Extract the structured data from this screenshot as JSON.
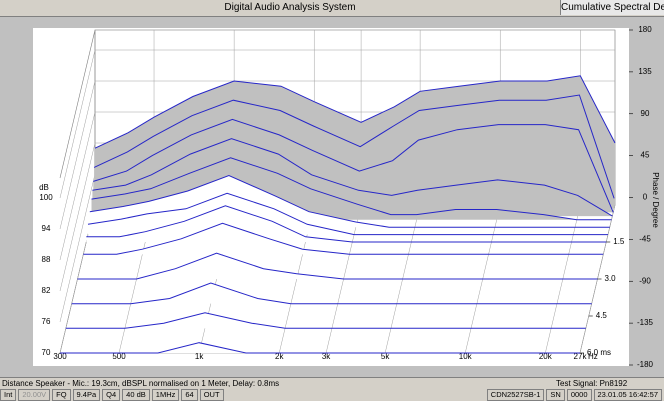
{
  "window": {
    "title": "Digital Audio Analysis System",
    "tab": "Cumulative Spectral Decay"
  },
  "plot": {
    "ylabel": "dB",
    "y2label": "Phase / Degree",
    "xunit": "Hz",
    "xlim": [
      300,
      27000
    ],
    "ylim": [
      70,
      100
    ],
    "tlim": [
      0,
      6
    ],
    "y2lim": [
      -180,
      180
    ],
    "xticks": [
      300,
      500,
      {
        "value": 1000,
        "label": "1k"
      },
      {
        "value": 2000,
        "label": "2k"
      },
      {
        "value": 3000,
        "label": "3k"
      },
      {
        "value": 5000,
        "label": "5k"
      },
      {
        "value": 10000,
        "label": "10k"
      },
      {
        "value": 20000,
        "label": "20k"
      },
      {
        "value": 27000,
        "label": "27k"
      }
    ],
    "yticks": [
      100,
      94,
      88,
      82,
      76,
      70
    ],
    "tticks": [
      1.5,
      {
        "value": 3,
        "label": "3.0"
      },
      4.5,
      {
        "value": 6,
        "label": "6.0 ms"
      }
    ],
    "y2ticks": [
      180,
      135,
      90,
      45,
      0,
      -45,
      -90,
      -135,
      -180
    ],
    "line_color": "#2626c8",
    "frequencies": [
      300,
      400,
      500,
      700,
      1000,
      1500,
      2000,
      3000,
      4000,
      5000,
      7000,
      10000,
      15000,
      20000,
      27000
    ],
    "slices": [
      {
        "time": 0,
        "fill": "#c0c0c0",
        "values": [
          81,
          84,
          87,
          91,
          94,
          93,
          90,
          86,
          89,
          92,
          93,
          94,
          94,
          95,
          82
        ]
      },
      {
        "time": 0.15,
        "fill": "#c0c0c0",
        "values": [
          78,
          81,
          84,
          88,
          91,
          89,
          86,
          82,
          86,
          89,
          90,
          91,
          91,
          92,
          72
        ]
      },
      {
        "time": 0.3,
        "fill": "#c0c0c0",
        "values": [
          76,
          78,
          81,
          85,
          88,
          85,
          82,
          78,
          80,
          84,
          86,
          87,
          87,
          86,
          70
        ]
      },
      {
        "time": 0.45,
        "fill": "#c0c0c0",
        "values": [
          75,
          76,
          78,
          82,
          85,
          82,
          78,
          75,
          74,
          75,
          76,
          77,
          76,
          74,
          70
        ]
      },
      {
        "time": 0.6,
        "fill": "#c0c0c0",
        "values": [
          74,
          75,
          76,
          79,
          82,
          79,
          76,
          73,
          71,
          71,
          72,
          72,
          71,
          70,
          70
        ]
      },
      {
        "time": 0.9,
        "fill": "#ffffff",
        "values": [
          73,
          74,
          75,
          77,
          80,
          76,
          73,
          71,
          70,
          70,
          70,
          70,
          70,
          70,
          70
        ]
      },
      {
        "time": 1.2,
        "fill": "#ffffff",
        "values": [
          72,
          73,
          74,
          75,
          78,
          75,
          72,
          70,
          70,
          70,
          70,
          70,
          70,
          70,
          70
        ]
      },
      {
        "time": 1.5,
        "fill": "#ffffff",
        "values": [
          71,
          71,
          72,
          74,
          77,
          74,
          71,
          70,
          70,
          70,
          70,
          70,
          70,
          70,
          70
        ]
      },
      {
        "time": 2,
        "fill": "#ffffff",
        "values": [
          70,
          70,
          71,
          73,
          76,
          73,
          71,
          70,
          70,
          70,
          70,
          70,
          70,
          70,
          70
        ]
      },
      {
        "time": 3,
        "fill": "#ffffff",
        "values": [
          70,
          70,
          70,
          72,
          75,
          72,
          71,
          70,
          70,
          70,
          70,
          70,
          70,
          70,
          70
        ]
      },
      {
        "time": 4,
        "fill": "#ffffff",
        "values": [
          70,
          70,
          70,
          71,
          74,
          71,
          70,
          70,
          70,
          70,
          70,
          70,
          70,
          70,
          70
        ]
      },
      {
        "time": 5,
        "fill": "#ffffff",
        "values": [
          70,
          70,
          70,
          71,
          73,
          71,
          70,
          70,
          70,
          70,
          70,
          70,
          70,
          70,
          70
        ]
      },
      {
        "time": 6,
        "fill": "#ffffff",
        "values": [
          70,
          70,
          70,
          70,
          72,
          70,
          70,
          70,
          70,
          70,
          70,
          70,
          70,
          70,
          70
        ]
      }
    ]
  },
  "status": {
    "left": "Distance Speaker - Mic.: 19.3cm, dBSPL normalised on 1 Meter, Delay: 0.8ms",
    "right": "Test Signal: Pn8192"
  },
  "toolbar": {
    "items": [
      {
        "label": "Int"
      },
      {
        "label": "20.00V",
        "disabled": true
      },
      {
        "label": "FQ"
      },
      {
        "label": "9.4Pa"
      },
      {
        "label": "Q4"
      },
      {
        "label": "40 dB"
      },
      {
        "label": "1MHz"
      },
      {
        "label": "64"
      },
      {
        "label": "OUT"
      }
    ],
    "right": [
      {
        "label": "CDN2527SB-1"
      },
      {
        "label": "SN"
      },
      {
        "label": "0000"
      },
      {
        "label": "23.01.05 16:42:57"
      }
    ]
  }
}
